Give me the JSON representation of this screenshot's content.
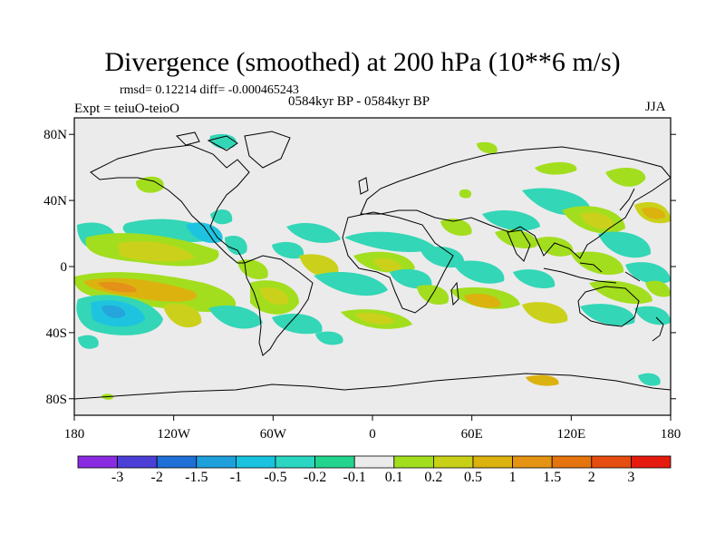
{
  "title": "Divergence (smoothed) at 200 hPa (10**6 m/s)",
  "stats": "rmsd= 0.12214 diff= -0.000465243",
  "experiment": "Expt = teiuO-teioO",
  "period": "0584kyr BP - 0584kyr BP",
  "season": "JJA",
  "lat_labels": [
    "80N",
    "40N",
    "0",
    "40S",
    "80S"
  ],
  "lon_labels": [
    "180",
    "120W",
    "60W",
    "0",
    "60E",
    "120E",
    "180"
  ],
  "colorbar": {
    "colors": [
      "#8a2be2",
      "#4b3fd8",
      "#1f6fd6",
      "#1ea0dc",
      "#19c3df",
      "#2bd6c2",
      "#22d48e",
      "#ebebeb",
      "#a2de1e",
      "#c9d018",
      "#dcb20f",
      "#e49412",
      "#e6740e",
      "#e64d10",
      "#e51b10"
    ],
    "labels": [
      "-3",
      "-2",
      "-1.5",
      "-1",
      "-0.5",
      "-0.2",
      "-0.1",
      "0.1",
      "0.2",
      "0.5",
      "1",
      "1.5",
      "2",
      "3"
    ]
  },
  "map_colors": {
    "background": "#ebebeb",
    "neg_light": "#33d6b6",
    "neg_mid": "#1ec4df",
    "neg_strong": "#26a4dc",
    "pos_light": "#a2de1e",
    "pos_mid": "#cbd11a",
    "pos_strong": "#dcb20f",
    "pos_deep": "#e4911a"
  }
}
